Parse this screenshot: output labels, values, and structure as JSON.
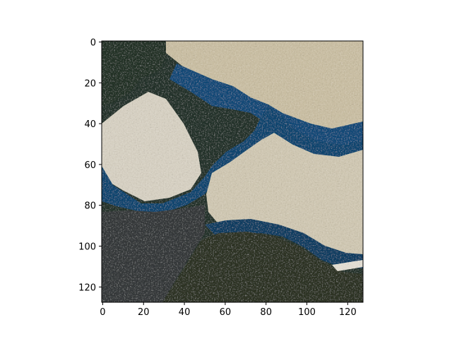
{
  "image": {
    "description_free": true,
    "pixel_grid": [
      128,
      128
    ]
  },
  "axes": {
    "x_ticks": [
      0,
      20,
      40,
      60,
      80,
      100,
      120
    ],
    "y_ticks": [
      0,
      20,
      40,
      60,
      80,
      100,
      120
    ],
    "xlim": [
      -0.5,
      127.5
    ],
    "ylim": [
      127.5,
      -0.5
    ]
  },
  "colors": {
    "dark_forest": "#1c2b26",
    "olive_shadow": "#2f3424",
    "deep_blue": "#0d3f66",
    "water_blue": "#1b5d8c",
    "sand_light": "#d9cfb8",
    "foam_white": "#e8e6e1",
    "tan": "#b8a57d",
    "speckle_gray": "#8a8c88"
  }
}
